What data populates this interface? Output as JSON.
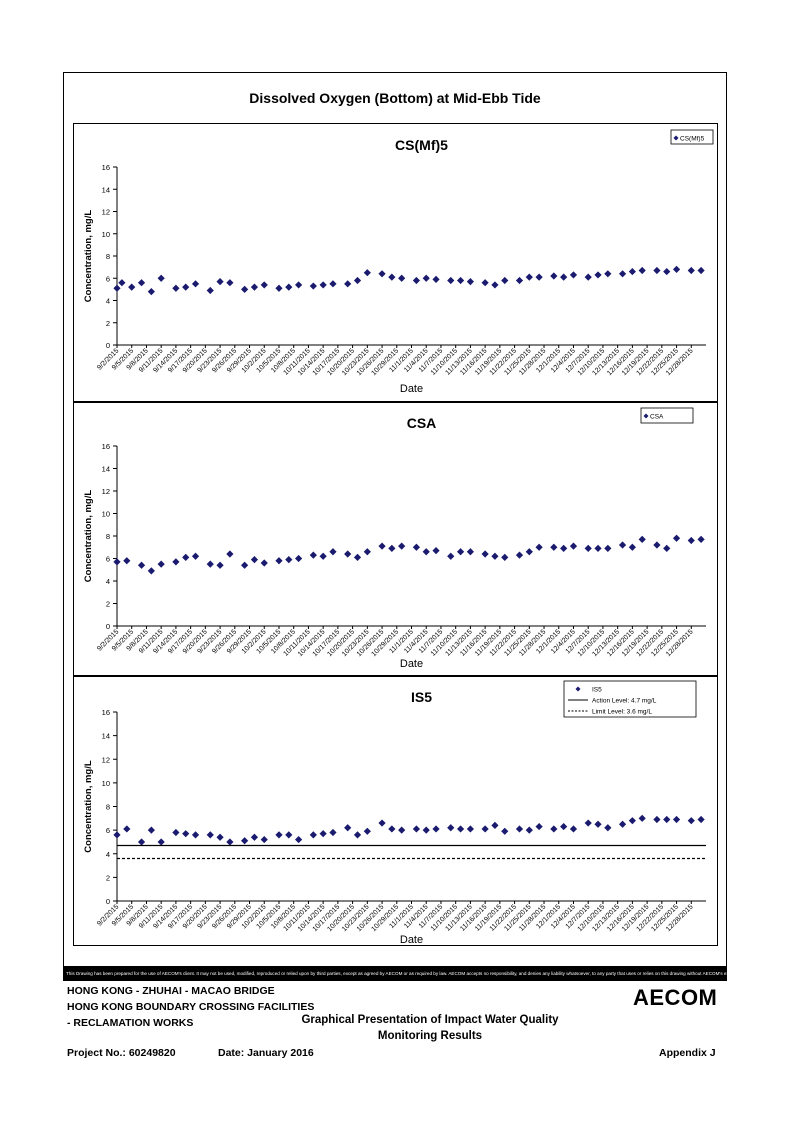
{
  "page_title": "Dissolved Oxygen (Bottom) at Mid-Ebb Tide",
  "disclaimer": "This Drawing has been prepared for the use of AECOM's client. It may not be used, modified, reproduced or relied upon by third parties, except as agreed by AECOM or as required by law. AECOM accepts no responsibility, and denies any liability whatsoever, to any party that uses or relies on this drawing without AECOM's express written consent.",
  "footer": {
    "project_line1": "HONG KONG - ZHUHAI - MACAO BRIDGE",
    "project_line2": "HONG KONG BOUNDARY CROSSING FACILITIES",
    "project_line3": "- RECLAMATION WORKS",
    "heading_line1": "Graphical Presentation of Impact Water Quality",
    "heading_line2": "Monitoring Results",
    "project_no": "Project No.: 60249820",
    "date": "Date: January 2016",
    "appendix": "Appendix J",
    "logo": "AECOM"
  },
  "colors": {
    "marker": "#1a1a6e",
    "line": "#000000"
  },
  "chart_data": [
    {
      "type": "scatter",
      "title": "CS(Mf)5",
      "xlabel": "Date",
      "ylabel": "Concentration, mg/L",
      "ylim": [
        0,
        16
      ],
      "yticks": [
        0,
        2,
        4,
        6,
        8,
        10,
        12,
        14,
        16
      ],
      "xticks": [
        "9/2/2015",
        "9/5/2015",
        "9/8/2015",
        "9/11/2015",
        "9/14/2015",
        "9/17/2015",
        "9/20/2015",
        "9/23/2015",
        "9/26/2015",
        "9/29/2015",
        "10/2/2015",
        "10/5/2015",
        "10/8/2015",
        "10/11/2015",
        "10/14/2015",
        "10/17/2015",
        "10/20/2015",
        "10/23/2015",
        "10/26/2015",
        "10/29/2015",
        "11/1/2015",
        "11/4/2015",
        "11/7/2015",
        "11/10/2015",
        "11/13/2015",
        "11/16/2015",
        "11/19/2015",
        "11/22/2015",
        "11/25/2015",
        "11/28/2015",
        "12/1/2015",
        "12/4/2015",
        "12/7/2015",
        "12/10/2015",
        "12/13/2015",
        "12/16/2015",
        "12/19/2015",
        "12/22/2015",
        "12/25/2015",
        "12/28/2015"
      ],
      "legend_position": "top-right",
      "series": [
        {
          "name": "CS(Mf)5",
          "x": [
            "9/2/2015",
            "9/3/2015",
            "9/5/2015",
            "9/7/2015",
            "9/9/2015",
            "9/11/2015",
            "9/14/2015",
            "9/16/2015",
            "9/18/2015",
            "9/21/2015",
            "9/23/2015",
            "9/25/2015",
            "9/28/2015",
            "9/30/2015",
            "10/2/2015",
            "10/5/2015",
            "10/7/2015",
            "10/9/2015",
            "10/12/2015",
            "10/14/2015",
            "10/16/2015",
            "10/19/2015",
            "10/21/2015",
            "10/23/2015",
            "10/26/2015",
            "10/28/2015",
            "10/30/2015",
            "11/2/2015",
            "11/4/2015",
            "11/6/2015",
            "11/9/2015",
            "11/11/2015",
            "11/13/2015",
            "11/16/2015",
            "11/18/2015",
            "11/20/2015",
            "11/23/2015",
            "11/25/2015",
            "11/27/2015",
            "11/30/2015",
            "12/2/2015",
            "12/4/2015",
            "12/7/2015",
            "12/9/2015",
            "12/11/2015",
            "12/14/2015",
            "12/16/2015",
            "12/18/2015",
            "12/21/2015",
            "12/23/2015",
            "12/25/2015",
            "12/28/2015",
            "12/30/2015"
          ],
          "y": [
            5.1,
            5.6,
            5.2,
            5.6,
            4.8,
            6.0,
            5.1,
            5.2,
            5.5,
            4.9,
            5.7,
            5.6,
            5.0,
            5.2,
            5.4,
            5.1,
            5.2,
            5.4,
            5.3,
            5.4,
            5.5,
            5.5,
            5.8,
            6.5,
            6.4,
            6.1,
            6.0,
            5.8,
            6.0,
            5.9,
            5.8,
            5.8,
            5.7,
            5.6,
            5.4,
            5.8,
            5.8,
            6.1,
            6.1,
            6.2,
            6.1,
            6.3,
            6.1,
            6.3,
            6.4,
            6.4,
            6.6,
            6.7,
            6.7,
            6.6,
            6.8,
            6.7,
            6.7
          ]
        }
      ]
    },
    {
      "type": "scatter",
      "title": "CSA",
      "xlabel": "Date",
      "ylabel": "Concentration, mg/L",
      "ylim": [
        0,
        16
      ],
      "yticks": [
        0,
        2,
        4,
        6,
        8,
        10,
        12,
        14,
        16
      ],
      "xticks": [
        "9/2/2015",
        "9/5/2015",
        "9/8/2015",
        "9/11/2015",
        "9/14/2015",
        "9/17/2015",
        "9/20/2015",
        "9/23/2015",
        "9/26/2015",
        "9/29/2015",
        "10/2/2015",
        "10/5/2015",
        "10/8/2015",
        "10/11/2015",
        "10/14/2015",
        "10/17/2015",
        "10/20/2015",
        "10/23/2015",
        "10/26/2015",
        "10/29/2015",
        "11/1/2015",
        "11/4/2015",
        "11/7/2015",
        "11/10/2015",
        "11/13/2015",
        "11/16/2015",
        "11/19/2015",
        "11/22/2015",
        "11/25/2015",
        "11/28/2015",
        "12/1/2015",
        "12/4/2015",
        "12/7/2015",
        "12/10/2015",
        "12/13/2015",
        "12/16/2015",
        "12/19/2015",
        "12/22/2015",
        "12/25/2015",
        "12/28/2015"
      ],
      "legend_position": "top-right",
      "series": [
        {
          "name": "CSA",
          "x": [
            "9/2/2015",
            "9/4/2015",
            "9/7/2015",
            "9/9/2015",
            "9/11/2015",
            "9/14/2015",
            "9/16/2015",
            "9/18/2015",
            "9/21/2015",
            "9/23/2015",
            "9/25/2015",
            "9/28/2015",
            "9/30/2015",
            "10/2/2015",
            "10/5/2015",
            "10/7/2015",
            "10/9/2015",
            "10/12/2015",
            "10/14/2015",
            "10/16/2015",
            "10/19/2015",
            "10/21/2015",
            "10/23/2015",
            "10/26/2015",
            "10/28/2015",
            "10/30/2015",
            "11/2/2015",
            "11/4/2015",
            "11/6/2015",
            "11/9/2015",
            "11/11/2015",
            "11/13/2015",
            "11/16/2015",
            "11/18/2015",
            "11/20/2015",
            "11/23/2015",
            "11/25/2015",
            "11/27/2015",
            "11/30/2015",
            "12/2/2015",
            "12/4/2015",
            "12/7/2015",
            "12/9/2015",
            "12/11/2015",
            "12/14/2015",
            "12/16/2015",
            "12/18/2015",
            "12/21/2015",
            "12/23/2015",
            "12/25/2015",
            "12/28/2015",
            "12/30/2015"
          ],
          "y": [
            5.7,
            5.8,
            5.4,
            4.9,
            5.5,
            5.7,
            6.1,
            6.2,
            5.5,
            5.4,
            6.4,
            5.4,
            5.9,
            5.6,
            5.8,
            5.9,
            6.0,
            6.3,
            6.2,
            6.6,
            6.4,
            6.1,
            6.6,
            7.1,
            6.9,
            7.1,
            7.0,
            6.6,
            6.7,
            6.2,
            6.6,
            6.6,
            6.4,
            6.2,
            6.1,
            6.3,
            6.6,
            7.0,
            7.0,
            6.9,
            7.1,
            6.9,
            6.9,
            6.9,
            7.2,
            7.0,
            7.7,
            7.2,
            6.9,
            7.8,
            7.6,
            7.7
          ]
        }
      ]
    },
    {
      "type": "scatter",
      "title": "IS5",
      "xlabel": "Date",
      "ylabel": "Concentration, mg/L",
      "ylim": [
        0,
        16
      ],
      "yticks": [
        0,
        2,
        4,
        6,
        8,
        10,
        12,
        14,
        16
      ],
      "xticks": [
        "9/2/2015",
        "9/5/2015",
        "9/8/2015",
        "9/11/2015",
        "9/14/2015",
        "9/17/2015",
        "9/20/2015",
        "9/23/2015",
        "9/26/2015",
        "9/29/2015",
        "10/2/2015",
        "10/5/2015",
        "10/8/2015",
        "10/11/2015",
        "10/14/2015",
        "10/17/2015",
        "10/20/2015",
        "10/23/2015",
        "10/26/2015",
        "10/29/2015",
        "11/1/2015",
        "11/4/2015",
        "11/7/2015",
        "11/10/2015",
        "11/13/2015",
        "11/16/2015",
        "11/19/2015",
        "11/22/2015",
        "11/25/2015",
        "11/28/2015",
        "12/1/2015",
        "12/4/2015",
        "12/7/2015",
        "12/10/2015",
        "12/13/2015",
        "12/16/2015",
        "12/19/2015",
        "12/22/2015",
        "12/25/2015",
        "12/28/2015"
      ],
      "legend_position": "top-right",
      "series": [
        {
          "name": "IS5",
          "x": [
            "9/2/2015",
            "9/4/2015",
            "9/7/2015",
            "9/9/2015",
            "9/11/2015",
            "9/14/2015",
            "9/16/2015",
            "9/18/2015",
            "9/21/2015",
            "9/23/2015",
            "9/25/2015",
            "9/28/2015",
            "9/30/2015",
            "10/2/2015",
            "10/5/2015",
            "10/7/2015",
            "10/9/2015",
            "10/12/2015",
            "10/14/2015",
            "10/16/2015",
            "10/19/2015",
            "10/21/2015",
            "10/23/2015",
            "10/26/2015",
            "10/28/2015",
            "10/30/2015",
            "11/2/2015",
            "11/4/2015",
            "11/6/2015",
            "11/9/2015",
            "11/11/2015",
            "11/13/2015",
            "11/16/2015",
            "11/18/2015",
            "11/20/2015",
            "11/23/2015",
            "11/25/2015",
            "11/27/2015",
            "11/30/2015",
            "12/2/2015",
            "12/4/2015",
            "12/7/2015",
            "12/9/2015",
            "12/11/2015",
            "12/14/2015",
            "12/16/2015",
            "12/18/2015",
            "12/21/2015",
            "12/23/2015",
            "12/25/2015",
            "12/28/2015",
            "12/30/2015"
          ],
          "y": [
            5.6,
            6.1,
            5.0,
            6.0,
            5.0,
            5.8,
            5.7,
            5.6,
            5.6,
            5.4,
            5.0,
            5.1,
            5.4,
            5.2,
            5.6,
            5.6,
            5.2,
            5.6,
            5.7,
            5.8,
            6.2,
            5.6,
            5.9,
            6.6,
            6.1,
            6.0,
            6.1,
            6.0,
            6.1,
            6.2,
            6.1,
            6.1,
            6.1,
            6.4,
            5.9,
            6.1,
            6.0,
            6.3,
            6.1,
            6.3,
            6.1,
            6.6,
            6.5,
            6.2,
            6.5,
            6.8,
            7.0,
            6.9,
            6.9,
            6.9,
            6.8,
            6.9
          ]
        },
        {
          "name": "Action Level: 4.7 mg/L",
          "kind": "line",
          "style": "solid",
          "value": 4.7
        },
        {
          "name": "Limit Level: 3.6 mg/L",
          "kind": "line",
          "style": "dashed",
          "value": 3.6
        }
      ]
    }
  ]
}
